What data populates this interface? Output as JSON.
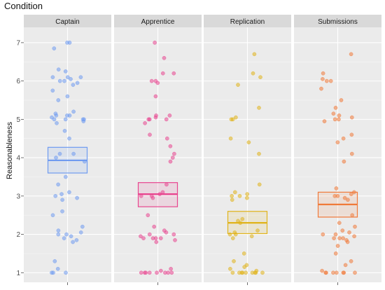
{
  "chart_data": {
    "type": "scatter",
    "title": "Condition",
    "xlabel": "",
    "ylabel": "Reasonableness",
    "ylim": [
      0.75,
      7.4
    ],
    "yticks": [
      1,
      2,
      3,
      4,
      5,
      6,
      7
    ],
    "grid": true,
    "legend": "none",
    "panels": [
      {
        "name": "Captain",
        "color": "#6f9bf0",
        "box": {
          "q1": 3.6,
          "median": 3.93,
          "q3": 4.27
        },
        "points": [
          7,
          7,
          6.85,
          6.3,
          6.25,
          6.1,
          6.1,
          6.1,
          6.05,
          6.0,
          6.0,
          5.95,
          5.9,
          5.75,
          5.6,
          5.5,
          5.2,
          5.15,
          5.1,
          5.1,
          5.1,
          5.05,
          5.0,
          5.0,
          5.0,
          5.0,
          4.95,
          4.9,
          4.7,
          4.5,
          4.1,
          4.1,
          4.0,
          3.9,
          3.5,
          3.3,
          3.1,
          3.05,
          3.0,
          2.95,
          2.9,
          2.6,
          2.5,
          2.2,
          2.1,
          2.05,
          2.0,
          2.0,
          1.95,
          1.9,
          1.85,
          1.8,
          1.3,
          1.1,
          1.0,
          1.0,
          1.0
        ]
      },
      {
        "name": "Apprentice",
        "color": "#e8458f",
        "box": {
          "q1": 2.72,
          "median": 3.05,
          "q3": 3.35
        },
        "points": [
          7,
          6.6,
          6.2,
          6.2,
          6.0,
          6.0,
          5.95,
          5.6,
          5.1,
          5.1,
          5.05,
          5.0,
          5.0,
          5.0,
          4.9,
          4.6,
          4.5,
          4.3,
          4.1,
          4.0,
          3.9,
          3.3,
          3.1,
          3.05,
          3.0,
          3.0,
          2.95,
          2.5,
          2.2,
          2.1,
          2.05,
          2.0,
          2.0,
          1.95,
          1.9,
          1.9,
          1.9,
          1.9,
          1.85,
          1.8,
          1.1,
          1.05,
          1.0,
          1.0,
          1.0,
          1.0,
          1.0,
          1.0,
          1.0,
          1.0
        ]
      },
      {
        "name": "Replication",
        "color": "#e0b31a",
        "box": {
          "q1": 2.02,
          "median": 2.3,
          "q3": 2.6
        },
        "points": [
          6.7,
          6.2,
          6.1,
          5.9,
          5.3,
          5.05,
          5.0,
          5.0,
          4.5,
          4.4,
          4.1,
          3.3,
          3.1,
          3.05,
          3.0,
          3.0,
          2.95,
          2.9,
          2.4,
          2.35,
          2.3,
          2.1,
          2.05,
          2.0,
          2.0,
          1.95,
          1.9,
          1.5,
          1.3,
          1.2,
          1.15,
          1.1,
          1.05,
          1.0,
          1.0,
          1.0,
          1.0,
          1.0,
          1.0,
          1.0,
          1.0,
          1.0
        ]
      },
      {
        "name": "Submissions",
        "color": "#f07a3a",
        "box": {
          "q1": 2.45,
          "median": 2.78,
          "q3": 3.1
        },
        "points": [
          6.7,
          6.2,
          6.05,
          6.0,
          6.0,
          5.8,
          5.5,
          5.3,
          5.15,
          5.1,
          5.05,
          5.0,
          5.0,
          4.95,
          4.6,
          4.5,
          4.4,
          4.1,
          3.9,
          3.2,
          3.1,
          3.05,
          3.0,
          3.0,
          2.95,
          2.9,
          2.5,
          2.3,
          2.2,
          2.1,
          2.05,
          2.0,
          2.0,
          1.95,
          1.9,
          1.9,
          1.9,
          1.85,
          1.8,
          1.7,
          1.5,
          1.3,
          1.2,
          1.05,
          1.0,
          1.0,
          1.0,
          1.0,
          1.0,
          1.0,
          1.0
        ]
      }
    ]
  }
}
